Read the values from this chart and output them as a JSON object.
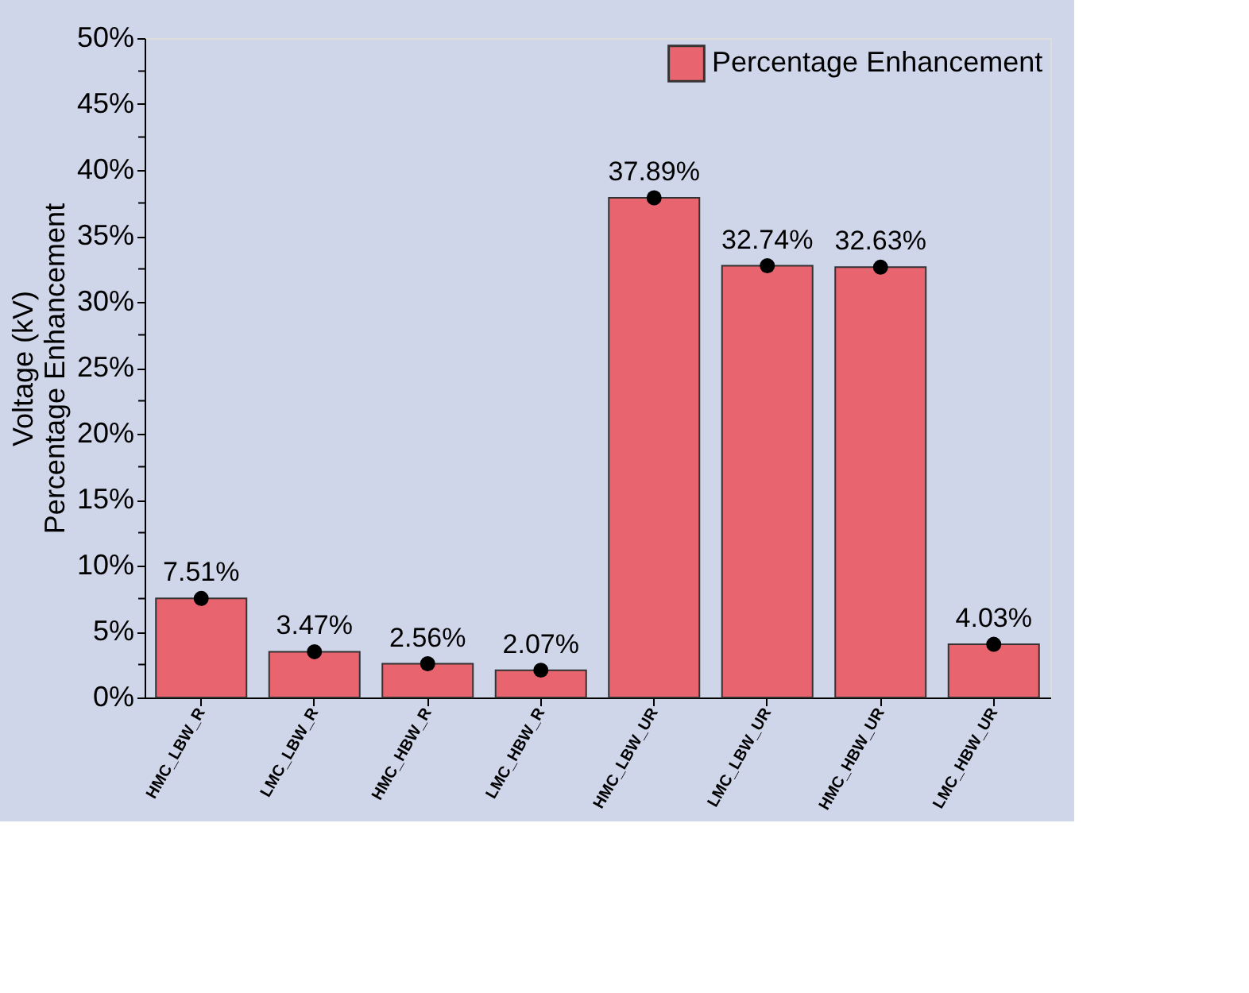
{
  "chart_data": {
    "type": "bar",
    "ylabel": "Voltage (kV)\nPercentage Enhancement",
    "categories": [
      "HMC_LBW_R",
      "LMC_LBW_R",
      "HMC_HBW_R",
      "LMC_HBW_R",
      "HMC_LBW_UR",
      "LMC_LBW_UR",
      "HMC_HBW_UR",
      "LMC_HBW_UR"
    ],
    "series": [
      {
        "name": "Percentage Enhancement",
        "color": "#e8646e",
        "values": [
          7.51,
          3.47,
          2.56,
          2.07,
          37.89,
          32.74,
          32.63,
          4.03
        ],
        "value_labels": [
          "7.51%",
          "3.47%",
          "2.56%",
          "2.07%",
          "37.89%",
          "32.74%",
          "32.63%",
          "4.03%"
        ]
      },
      {
        "type": "scatter",
        "color": "#000000",
        "marker": "circle",
        "values": [
          7.51,
          3.47,
          2.56,
          2.07,
          37.89,
          32.74,
          32.63,
          4.03
        ]
      }
    ],
    "ylim": [
      0,
      50
    ],
    "yticks": [
      {
        "value": 0,
        "label": "0%"
      },
      {
        "value": 2.5,
        "label": null
      },
      {
        "value": 5,
        "label": "5%"
      },
      {
        "value": 7.5,
        "label": null
      },
      {
        "value": 10,
        "label": "10%"
      },
      {
        "value": 12.5,
        "label": null
      },
      {
        "value": 15,
        "label": "15%"
      },
      {
        "value": 17.5,
        "label": null
      },
      {
        "value": 20,
        "label": "20%"
      },
      {
        "value": 22.5,
        "label": null
      },
      {
        "value": 25,
        "label": "25%"
      },
      {
        "value": 27.5,
        "label": null
      },
      {
        "value": 30,
        "label": "30%"
      },
      {
        "value": 32.5,
        "label": null
      },
      {
        "value": 35,
        "label": "35%"
      },
      {
        "value": 37.5,
        "label": null
      },
      {
        "value": 40,
        "label": "40%"
      },
      {
        "value": 42.5,
        "label": null
      },
      {
        "value": 45,
        "label": "45%"
      },
      {
        "value": 47.5,
        "label": null
      },
      {
        "value": 50,
        "label": "50%"
      }
    ],
    "grid": false,
    "legend": "top right"
  }
}
